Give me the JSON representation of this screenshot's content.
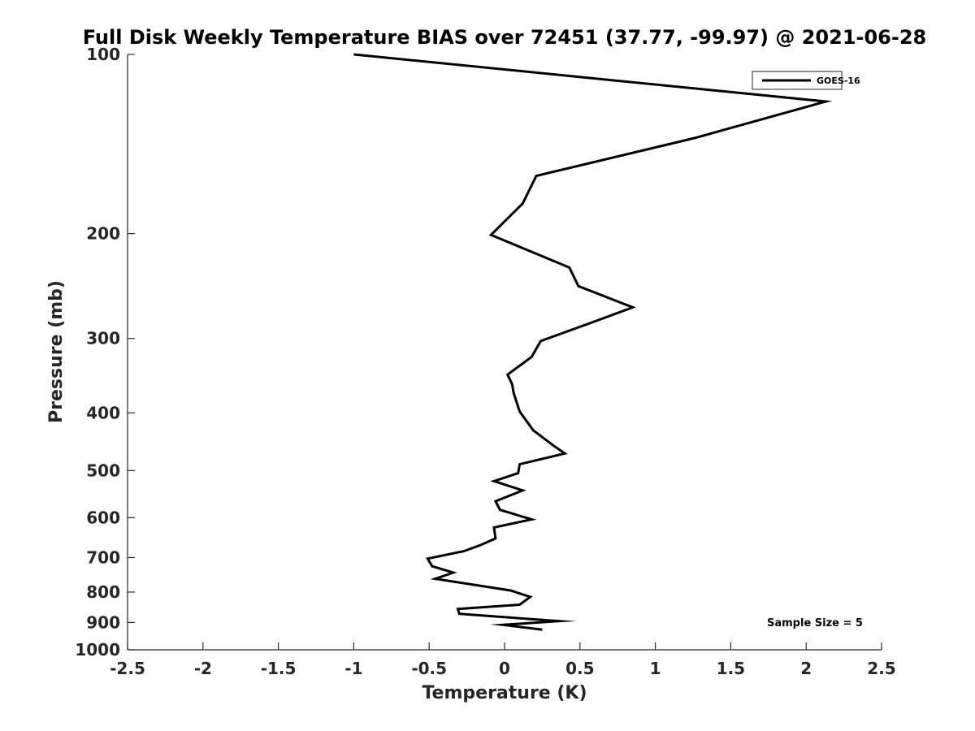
{
  "chart_data": {
    "type": "line",
    "title": "Full Disk Weekly Temperature BIAS over 72451 (37.77, -99.97) @ 2021-06-28",
    "xlabel": "Temperature (K)",
    "ylabel": "Pressure (mb)",
    "xlim": [
      -2.5,
      2.5
    ],
    "ylim": [
      100,
      1000
    ],
    "y_scale": "log",
    "y_reversed": true,
    "x_ticks": [
      -2.5,
      -2,
      -1.5,
      -1,
      -0.5,
      0,
      0.5,
      1,
      1.5,
      2,
      2.5
    ],
    "x_tick_labels": [
      "-2.5",
      "-2",
      "-1.5",
      "-1",
      "-0.5",
      "0",
      "0.5",
      "1",
      "1.5",
      "2",
      "2.5"
    ],
    "y_ticks": [
      100,
      200,
      300,
      400,
      500,
      600,
      700,
      800,
      900,
      1000
    ],
    "y_tick_labels": [
      "100",
      "200",
      "300",
      "400",
      "500",
      "600",
      "700",
      "800",
      "900",
      "1000"
    ],
    "grid": false,
    "legend_position": "top-right",
    "series": [
      {
        "name": "GOES-16",
        "color": "#000000",
        "x": [
          -1.0,
          2.13,
          1.27,
          0.21,
          0.12,
          -0.09,
          0.43,
          0.49,
          0.85,
          0.58,
          0.24,
          0.18,
          0.02,
          0.05,
          0.06,
          0.1,
          0.19,
          0.33,
          0.4,
          0.1,
          0.09,
          -0.07,
          0.12,
          -0.06,
          -0.03,
          0.18,
          -0.07,
          -0.06,
          -0.16,
          -0.27,
          -0.51,
          -0.48,
          -0.34,
          -0.46,
          0.04,
          0.17,
          0.1,
          -0.31,
          -0.3,
          0.36,
          -0.01,
          0.25
        ],
        "y": [
          100,
          120,
          138,
          160,
          178,
          201,
          228,
          245,
          266,
          282,
          303,
          322,
          345,
          358,
          370,
          398,
          428,
          455,
          468,
          488,
          505,
          521,
          540,
          563,
          582,
          604,
          623,
          650,
          667,
          683,
          703,
          724,
          742,
          760,
          795,
          815,
          840,
          854,
          870,
          895,
          908,
          925
        ]
      }
    ],
    "annotation": "Sample Size = 5"
  }
}
